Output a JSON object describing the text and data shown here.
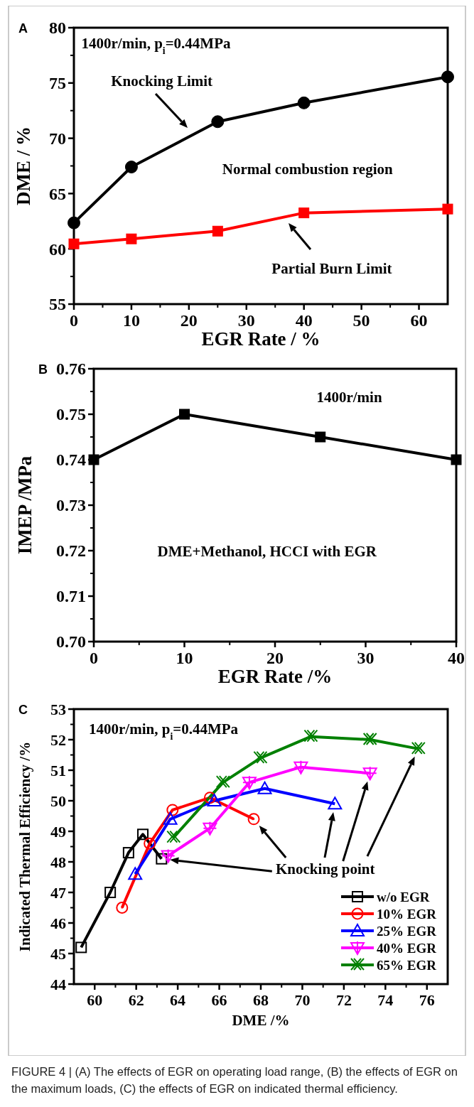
{
  "chart_data": [
    {
      "type": "line",
      "title": "A",
      "xlabel": "EGR Rate / %",
      "ylabel": "DME / %",
      "x": [
        0,
        10,
        25,
        40,
        65
      ],
      "xlim": [
        0,
        65
      ],
      "xticks": [
        0,
        10,
        20,
        30,
        40,
        50,
        60
      ],
      "ylim": [
        55,
        80
      ],
      "yticks": [
        55,
        60,
        65,
        70,
        75,
        80
      ],
      "line_style": "solid",
      "legend": false,
      "grid": false,
      "series": [
        {
          "color": "#000000",
          "marker": "circle",
          "values": [
            62.35,
            67.4,
            71.5,
            73.2,
            75.55
          ]
        },
        {
          "color": "#ff0000",
          "marker": "square",
          "values": [
            60.45,
            60.9,
            61.6,
            63.25,
            63.6
          ]
        }
      ],
      "annotations": [
        "1400r/min, p$_{i}$=0.44MPa",
        "Normal combustion region",
        "Knocking Limit",
        "Partial Burn Limit"
      ]
    },
    {
      "type": "line",
      "title": "B",
      "xlabel": "EGR Rate /%",
      "ylabel": "IMEP /MPa",
      "x": [
        0,
        10,
        25,
        40
      ],
      "xlim": [
        0,
        40
      ],
      "xticks": [
        0,
        10,
        20,
        30,
        40
      ],
      "ylim": [
        0.7,
        0.76
      ],
      "yticks": [
        {
          "value": 0.7,
          "label": "0.70"
        },
        0.71,
        0.72,
        0.73,
        0.74,
        0.75,
        0.76
      ],
      "marker": "square",
      "line_style": "solid",
      "legend": false,
      "grid": false,
      "series": [
        {
          "color": "#000000",
          "values": [
            0.74,
            0.75,
            0.745,
            0.74
          ]
        }
      ],
      "annotations": [
        "1400r/min",
        "DME+Methanol, HCCI with EGR"
      ]
    },
    {
      "type": "line",
      "title": "C",
      "xlabel": "DME /%",
      "ylabel": "Indicated Thermal Efficiency /%",
      "xlim": [
        59,
        77
      ],
      "xticks": [
        60,
        62,
        64,
        66,
        68,
        70,
        72,
        74,
        76
      ],
      "ylim": [
        44,
        53
      ],
      "yticks": [
        44,
        45,
        46,
        47,
        48,
        49,
        50,
        51,
        52,
        53
      ],
      "line_style": "solid",
      "legend": "bottom right",
      "grid": false,
      "series": [
        {
          "name": "w/o EGR",
          "color": "#000000",
          "marker": "square",
          "x": [
            59.35,
            60.75,
            61.63,
            62.32,
            63.22
          ],
          "values": [
            45.2,
            47.0,
            48.3,
            48.9,
            48.1
          ]
        },
        {
          "name": "10% EGR",
          "color": "#ff0000",
          "marker": "circle",
          "x": [
            61.32,
            62.65,
            63.75,
            65.55,
            67.66
          ],
          "values": [
            46.5,
            48.6,
            49.7,
            50.1,
            49.4
          ]
        },
        {
          "name": "25% EGR",
          "color": "#0000ff",
          "marker": "triangle",
          "x": [
            61.95,
            63.64,
            65.76,
            68.19,
            71.57
          ],
          "values": [
            47.6,
            49.4,
            50.0,
            50.4,
            49.9
          ]
        },
        {
          "name": "40% EGR",
          "color": "#ff00ff",
          "marker": "triangle",
          "x": [
            63.54,
            65.55,
            67.45,
            69.93,
            73.26
          ],
          "values": [
            48.2,
            49.1,
            50.6,
            51.1,
            50.9
          ]
        },
        {
          "name": "65% EGR",
          "color": "#008000",
          "marker": "cross",
          "x": [
            63.8,
            66.18,
            67.98,
            70.41,
            73.26,
            75.59
          ],
          "values": [
            48.8,
            50.6,
            51.4,
            52.1,
            52.0,
            51.7
          ]
        }
      ],
      "annotations": [
        "1400r/min, p$_{i}$=0.44MPa",
        "Knocking point",
        "FIGURE 4 | (A) The effects of EGR on operating load range, (B) the effects of EGR on the maximum loads, (C) the effects of EGR on indicated thermal efficiency."
      ]
    }
  ]
}
